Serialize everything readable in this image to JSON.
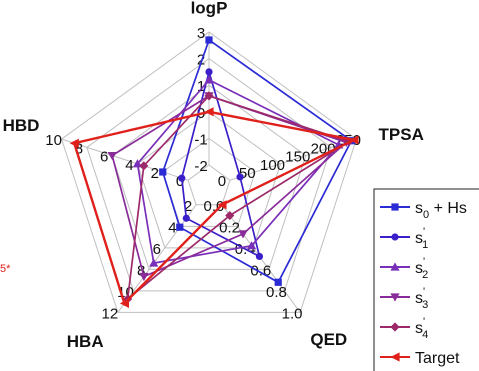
{
  "side_note": "5*",
  "chart_data": {
    "type": "radar",
    "axes": [
      {
        "name": "logP",
        "ticks": [
          "-2",
          "-1",
          "0",
          "1",
          "2",
          "3"
        ],
        "range": [
          -2,
          3
        ]
      },
      {
        "name": "TPSA",
        "ticks": [
          "0",
          "50",
          "100",
          "150",
          "200",
          "250"
        ],
        "range": [
          0,
          250
        ]
      },
      {
        "name": "QED",
        "ticks": [
          "0.0",
          "0.2",
          "0.4",
          "0.6",
          "0.8",
          "1.0"
        ],
        "range": [
          0,
          1
        ]
      },
      {
        "name": "HBA",
        "ticks": [
          "2",
          "4",
          "6",
          "8",
          "10",
          "12"
        ],
        "range": [
          0,
          12
        ]
      },
      {
        "name": "HBD",
        "ticks": [
          "0",
          "2",
          "4",
          "6",
          "8",
          "10"
        ],
        "range": [
          0,
          10
        ]
      }
    ],
    "grid": true,
    "legend_position": "right",
    "series": [
      {
        "name": "s0 + Hs",
        "label_main": "s",
        "label_sub": "0",
        "label_sup": "",
        "label_tail": " + Hs",
        "color": "#2b2bd6",
        "marker": "square",
        "values": {
          "logP": 2.7,
          "TPSA": 240,
          "QED": 0.72,
          "HBA": 2.5,
          "HBD": 2.0
        }
      },
      {
        "name": "s'1",
        "label_main": "s",
        "label_sub": "1",
        "label_sup": "'",
        "label_tail": "",
        "color": "#3b1fc9",
        "marker": "circle",
        "values": {
          "logP": 1.5,
          "TPSA": 20,
          "QED": 0.48,
          "HBA": 1.5,
          "HBD": 0.5
        }
      },
      {
        "name": "s'2",
        "label_main": "s",
        "label_sub": "2",
        "label_sup": "'",
        "label_tail": "",
        "color": "#7a2fb8",
        "marker": "triangle-up",
        "values": {
          "logP": 1.2,
          "TPSA": 215,
          "QED": 0.38,
          "HBA": 6.5,
          "HBD": 4.0
        }
      },
      {
        "name": "s'3",
        "label_main": "s",
        "label_sub": "3",
        "label_sup": "'",
        "label_tail": "",
        "color": "#8a2b9a",
        "marker": "triangle-down",
        "values": {
          "logP": 0.6,
          "TPSA": 230,
          "QED": 0.27,
          "HBA": 8.0,
          "HBD": 6.0
        }
      },
      {
        "name": "s'4",
        "label_main": "s",
        "label_sub": "4",
        "label_sup": "'",
        "label_tail": "",
        "color": "#9c2a6a",
        "marker": "diamond",
        "values": {
          "logP": 0.6,
          "TPSA": 235,
          "QED": 0.1,
          "HBA": 10.5,
          "HBD": 3.5
        }
      },
      {
        "name": "Target",
        "label_main": "Target",
        "label_sub": "",
        "label_sup": "",
        "label_tail": "",
        "color": "#e0201b",
        "marker": "triangle-left",
        "values": {
          "logP": 0.0,
          "TPSA": 245,
          "QED": 0.0,
          "HBA": 11.0,
          "HBD": 9.0
        }
      }
    ]
  }
}
